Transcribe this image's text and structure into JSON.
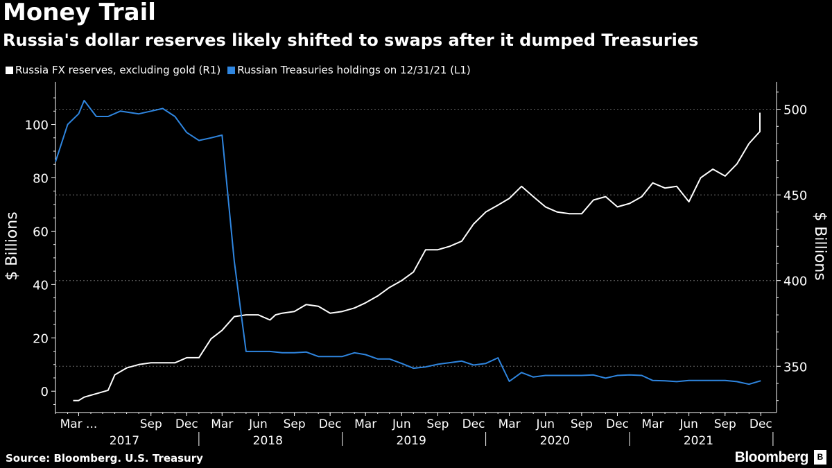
{
  "title": "Money Trail",
  "subtitle": "Russia's dollar reserves likely shifted to swaps after it dumped Treasuries",
  "source": "Source: Bloomberg. U.S. Treasury",
  "brand": "Bloomberg",
  "colors": {
    "background": "#000000",
    "fx_reserves": "#ffffff",
    "treasuries": "#2f86e0",
    "grid": "#555555"
  },
  "chart_data": {
    "type": "line",
    "x_axis": {
      "tick_labels": [
        "Mar ...",
        "Sep",
        "Dec",
        "Mar",
        "Jun",
        "Sep",
        "Dec",
        "Mar",
        "Jun",
        "Sep",
        "Dec",
        "Mar",
        "Jun",
        "Sep",
        "Dec",
        "Mar",
        "Jun",
        "Sep",
        "Dec"
      ],
      "tick_dates": [
        "2017-03",
        "2017-09",
        "2017-12",
        "2018-03",
        "2018-06",
        "2018-09",
        "2018-12",
        "2019-03",
        "2019-06",
        "2019-09",
        "2019-12",
        "2020-03",
        "2020-06",
        "2020-09",
        "2020-12",
        "2021-03",
        "2021-06",
        "2021-09",
        "2021-12"
      ],
      "years": [
        "2017",
        "2018",
        "2019",
        "2020",
        "2021"
      ],
      "range": [
        "2017-01-01",
        "2022-01-10"
      ]
    },
    "y_left": {
      "label": "$ Billions",
      "ticks": [
        0,
        20,
        40,
        60,
        80,
        100
      ],
      "range": [
        -8,
        116
      ]
    },
    "y_right": {
      "label": "$ Billions",
      "ticks": [
        350,
        400,
        450,
        500
      ],
      "range": [
        323,
        516
      ]
    },
    "grid": true,
    "legend_position": "top-left",
    "series": [
      {
        "name": "Russia FX reserves, excluding gold (R1)",
        "axis": "right",
        "color": "#ffffff",
        "points": [
          [
            "2017-02-15",
            330
          ],
          [
            "2017-03-01",
            330
          ],
          [
            "2017-03-15",
            332
          ],
          [
            "2017-04-15",
            334
          ],
          [
            "2017-05-15",
            336
          ],
          [
            "2017-06-01",
            345
          ],
          [
            "2017-07-01",
            349
          ],
          [
            "2017-08-01",
            351
          ],
          [
            "2017-09-01",
            352
          ],
          [
            "2017-10-01",
            352
          ],
          [
            "2017-11-01",
            352
          ],
          [
            "2017-12-01",
            355
          ],
          [
            "2018-01-01",
            355
          ],
          [
            "2018-02-01",
            366
          ],
          [
            "2018-03-01",
            371
          ],
          [
            "2018-04-01",
            379
          ],
          [
            "2018-05-01",
            380
          ],
          [
            "2018-06-01",
            380
          ],
          [
            "2018-07-01",
            377
          ],
          [
            "2018-07-15",
            380
          ],
          [
            "2018-08-01",
            381
          ],
          [
            "2018-09-01",
            382
          ],
          [
            "2018-10-01",
            386
          ],
          [
            "2018-11-01",
            385
          ],
          [
            "2018-12-01",
            381
          ],
          [
            "2019-01-01",
            382
          ],
          [
            "2019-02-01",
            384
          ],
          [
            "2019-03-01",
            387
          ],
          [
            "2019-04-01",
            391
          ],
          [
            "2019-05-01",
            396
          ],
          [
            "2019-06-01",
            400
          ],
          [
            "2019-07-01",
            405
          ],
          [
            "2019-08-01",
            418
          ],
          [
            "2019-09-01",
            418
          ],
          [
            "2019-10-01",
            420
          ],
          [
            "2019-11-01",
            423
          ],
          [
            "2019-12-01",
            433
          ],
          [
            "2020-01-01",
            440
          ],
          [
            "2020-02-01",
            444
          ],
          [
            "2020-03-01",
            448
          ],
          [
            "2020-04-01",
            455
          ],
          [
            "2020-05-01",
            449
          ],
          [
            "2020-06-01",
            443
          ],
          [
            "2020-07-01",
            440
          ],
          [
            "2020-08-01",
            439
          ],
          [
            "2020-09-01",
            439
          ],
          [
            "2020-10-01",
            447
          ],
          [
            "2020-11-01",
            449
          ],
          [
            "2020-12-01",
            443
          ],
          [
            "2021-01-01",
            445
          ],
          [
            "2021-02-01",
            449
          ],
          [
            "2021-03-01",
            457
          ],
          [
            "2021-04-01",
            454
          ],
          [
            "2021-05-01",
            455
          ],
          [
            "2021-06-01",
            446
          ],
          [
            "2021-07-01",
            460
          ],
          [
            "2021-08-01",
            465
          ],
          [
            "2021-09-01",
            461
          ],
          [
            "2021-10-01",
            468
          ],
          [
            "2021-11-01",
            480
          ],
          [
            "2021-12-01",
            487
          ],
          [
            "2022-01-01",
            488
          ],
          [
            "2022-01-15",
            488
          ],
          [
            "2022-02-01",
            492
          ],
          [
            "2022-03-01",
            490
          ],
          [
            "2022-03-15",
            497
          ],
          [
            "2022-04-01",
            498
          ]
        ]
      },
      {
        "name": "Russian Treasuries holdings on 12/31/21 (L1)",
        "axis": "left",
        "color": "#2f86e0",
        "points": [
          [
            "2017-01-01",
            86
          ],
          [
            "2017-02-01",
            100
          ],
          [
            "2017-03-01",
            104
          ],
          [
            "2017-03-15",
            109
          ],
          [
            "2017-04-15",
            103
          ],
          [
            "2017-05-15",
            103
          ],
          [
            "2017-06-15",
            105
          ],
          [
            "2017-08-01",
            104
          ],
          [
            "2017-09-01",
            105
          ],
          [
            "2017-10-01",
            106
          ],
          [
            "2017-11-01",
            103
          ],
          [
            "2017-12-01",
            97
          ],
          [
            "2018-01-01",
            94
          ],
          [
            "2018-02-01",
            95
          ],
          [
            "2018-03-01",
            96
          ],
          [
            "2018-04-01",
            48.7
          ],
          [
            "2018-05-01",
            14.9
          ],
          [
            "2018-06-01",
            14.9
          ],
          [
            "2018-07-01",
            14.9
          ],
          [
            "2018-08-01",
            14.4
          ],
          [
            "2018-09-01",
            14.4
          ],
          [
            "2018-10-01",
            14.7
          ],
          [
            "2018-11-01",
            13.0
          ],
          [
            "2018-12-01",
            13.0
          ],
          [
            "2019-01-01",
            13.0
          ],
          [
            "2019-02-01",
            14.4
          ],
          [
            "2019-03-01",
            13.7
          ],
          [
            "2019-04-01",
            12.1
          ],
          [
            "2019-05-01",
            12.1
          ],
          [
            "2019-06-01",
            10.4
          ],
          [
            "2019-07-01",
            8.6
          ],
          [
            "2019-08-01",
            9.1
          ],
          [
            "2019-09-01",
            10.1
          ],
          [
            "2019-10-01",
            10.7
          ],
          [
            "2019-11-01",
            11.3
          ],
          [
            "2019-12-01",
            9.8
          ],
          [
            "2020-01-01",
            10.4
          ],
          [
            "2020-02-01",
            12.5
          ],
          [
            "2020-03-01",
            3.7
          ],
          [
            "2020-04-01",
            7.0
          ],
          [
            "2020-05-01",
            5.3
          ],
          [
            "2020-06-01",
            5.9
          ],
          [
            "2020-07-01",
            5.9
          ],
          [
            "2020-08-01",
            5.9
          ],
          [
            "2020-09-01",
            5.9
          ],
          [
            "2020-10-01",
            6.1
          ],
          [
            "2020-11-01",
            4.9
          ],
          [
            "2020-12-01",
            5.9
          ],
          [
            "2021-01-01",
            6.1
          ],
          [
            "2021-02-01",
            5.9
          ],
          [
            "2021-03-01",
            4.0
          ],
          [
            "2021-04-01",
            3.9
          ],
          [
            "2021-05-01",
            3.6
          ],
          [
            "2021-06-01",
            4.0
          ],
          [
            "2021-07-01",
            4.0
          ],
          [
            "2021-08-01",
            4.0
          ],
          [
            "2021-09-01",
            4.0
          ],
          [
            "2021-10-01",
            3.6
          ],
          [
            "2021-11-01",
            2.6
          ],
          [
            "2021-12-01",
            3.9
          ]
        ]
      }
    ]
  }
}
